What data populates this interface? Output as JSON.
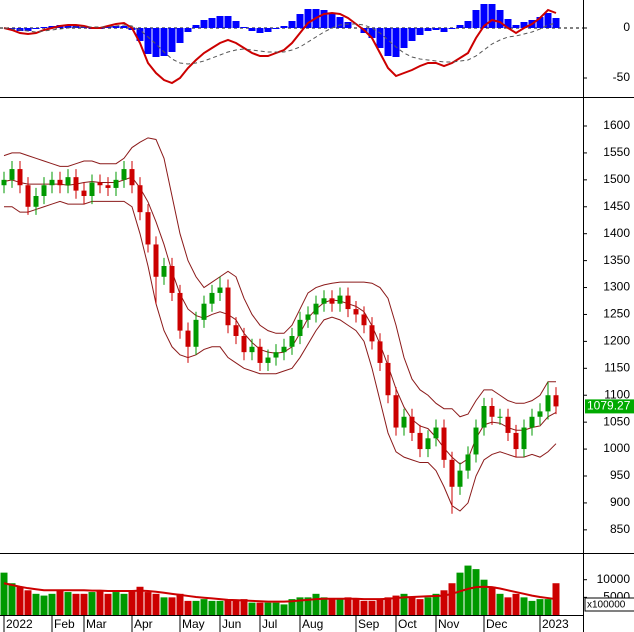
{
  "chart_data": [
    {
      "type": "macd",
      "series": [
        {
          "color": "#cc0000",
          "values": [
            0,
            -2,
            -5,
            -6,
            -5,
            -2,
            0,
            2,
            3,
            3,
            2,
            0,
            0,
            2,
            4,
            5,
            0,
            -15,
            -35,
            -45,
            -52,
            -55,
            -50,
            -40,
            -32,
            -25,
            -20,
            -15,
            -12,
            -15,
            -20,
            -25,
            -28,
            -28,
            -25,
            -22,
            -15,
            -5,
            5,
            10,
            14,
            15,
            14,
            10,
            4,
            -2,
            -10,
            -25,
            -40,
            -48,
            -45,
            -42,
            -38,
            -35,
            -35,
            -38,
            -35,
            -30,
            -25,
            -10,
            2,
            8,
            6,
            0,
            -5,
            0,
            4,
            10,
            18,
            15
          ]
        },
        {
          "color": "#555555",
          "dash": true,
          "values": [
            0,
            -1,
            -2,
            -3,
            -4,
            -3,
            -2,
            -1,
            0,
            1,
            1,
            1,
            1,
            1,
            2,
            3,
            2,
            -2,
            -9,
            -16,
            -24,
            -31,
            -35,
            -36,
            -35,
            -33,
            -30,
            -27,
            -24,
            -22,
            -21,
            -22,
            -23,
            -24,
            -24,
            -24,
            -22,
            -19,
            -14,
            -9,
            -4,
            0,
            3,
            4,
            4,
            3,
            0,
            -5,
            -12,
            -19,
            -25,
            -29,
            -31,
            -32,
            -33,
            -34,
            -34,
            -33,
            -32,
            -28,
            -22,
            -16,
            -12,
            -9,
            -8,
            -6,
            -4,
            -1,
            3,
            5
          ]
        }
      ],
      "histogram": {
        "color": "#0000ff",
        "values": [
          0,
          -1,
          -3,
          -3,
          -1,
          1,
          2,
          3,
          3,
          2,
          1,
          -1,
          -1,
          1,
          2,
          2,
          -2,
          -13,
          -26,
          -29,
          -28,
          -24,
          -15,
          -4,
          3,
          8,
          10,
          12,
          12,
          7,
          1,
          -3,
          -5,
          -4,
          -1,
          2,
          7,
          14,
          19,
          19,
          18,
          15,
          11,
          6,
          0,
          -5,
          -10,
          -20,
          -28,
          -29,
          -20,
          -13,
          -7,
          -3,
          -2,
          -4,
          -1,
          3,
          7,
          18,
          24,
          24,
          18,
          9,
          3,
          6,
          8,
          11,
          15,
          10
        ]
      },
      "ylim": [
        -69,
        28
      ],
      "yticks": [
        -50,
        0
      ]
    },
    {
      "type": "candlestick",
      "open": [
        1490,
        1500,
        1520,
        1490,
        1450,
        1470,
        1490,
        1500,
        1490,
        1505,
        1480,
        1470,
        1495,
        1490,
        1485,
        1500,
        1520,
        1490,
        1440,
        1380,
        1320,
        1340,
        1290,
        1220,
        1190,
        1240,
        1270,
        1290,
        1300,
        1230,
        1210,
        1180,
        1190,
        1160,
        1170,
        1180,
        1190,
        1210,
        1240,
        1250,
        1270,
        1280,
        1270,
        1285,
        1260,
        1250,
        1230,
        1200,
        1160,
        1100,
        1040,
        1060,
        1030,
        1000,
        1020,
        1040,
        980,
        930,
        960,
        990,
        1040,
        1080,
        1060,
        1060,
        1030,
        1000,
        1040,
        1060,
        1070,
        1100
      ],
      "high": [
        1515,
        1535,
        1535,
        1505,
        1485,
        1505,
        1515,
        1515,
        1520,
        1520,
        1495,
        1510,
        1510,
        1505,
        1515,
        1535,
        1535,
        1505,
        1455,
        1395,
        1355,
        1355,
        1305,
        1235,
        1255,
        1285,
        1305,
        1320,
        1315,
        1245,
        1225,
        1205,
        1205,
        1185,
        1195,
        1205,
        1225,
        1255,
        1265,
        1285,
        1295,
        1295,
        1300,
        1300,
        1275,
        1265,
        1245,
        1215,
        1175,
        1115,
        1075,
        1075,
        1045,
        1035,
        1055,
        1055,
        995,
        975,
        1005,
        1055,
        1095,
        1095,
        1075,
        1075,
        1045,
        1055,
        1075,
        1085,
        1125,
        1115
      ],
      "low": [
        1475,
        1485,
        1475,
        1435,
        1435,
        1455,
        1475,
        1475,
        1475,
        1465,
        1455,
        1455,
        1475,
        1470,
        1470,
        1485,
        1475,
        1425,
        1365,
        1270,
        1305,
        1275,
        1205,
        1160,
        1175,
        1225,
        1255,
        1275,
        1215,
        1195,
        1165,
        1165,
        1145,
        1145,
        1155,
        1165,
        1175,
        1195,
        1225,
        1235,
        1255,
        1255,
        1255,
        1245,
        1235,
        1215,
        1185,
        1145,
        1085,
        1025,
        1025,
        1015,
        985,
        985,
        1005,
        965,
        880,
        915,
        945,
        975,
        1025,
        1045,
        1045,
        1015,
        985,
        985,
        1025,
        1045,
        1055,
        1065
      ],
      "close": [
        1500,
        1520,
        1490,
        1450,
        1470,
        1490,
        1500,
        1490,
        1505,
        1480,
        1470,
        1495,
        1490,
        1485,
        1500,
        1520,
        1490,
        1440,
        1380,
        1320,
        1340,
        1290,
        1220,
        1190,
        1240,
        1270,
        1290,
        1300,
        1230,
        1210,
        1180,
        1190,
        1160,
        1170,
        1180,
        1190,
        1210,
        1240,
        1250,
        1270,
        1280,
        1270,
        1285,
        1260,
        1250,
        1230,
        1200,
        1160,
        1100,
        1040,
        1060,
        1030,
        1000,
        1020,
        1040,
        980,
        930,
        960,
        990,
        1040,
        1080,
        1060,
        1060,
        1030,
        1000,
        1040,
        1060,
        1070,
        1100,
        1079.27
      ],
      "up_color": "#009900",
      "down_color": "#cc0000",
      "bands": {
        "color": "#8b1a1a",
        "upper": [
          1545,
          1550,
          1550,
          1545,
          1540,
          1535,
          1530,
          1525,
          1525,
          1530,
          1535,
          1535,
          1530,
          1530,
          1530,
          1540,
          1560,
          1570,
          1578,
          1575,
          1540,
          1470,
          1400,
          1350,
          1320,
          1300,
          1310,
          1320,
          1330,
          1320,
          1280,
          1250,
          1230,
          1220,
          1215,
          1215,
          1230,
          1260,
          1290,
          1300,
          1305,
          1308,
          1310,
          1310,
          1310,
          1310,
          1308,
          1300,
          1280,
          1230,
          1170,
          1130,
          1110,
          1100,
          1085,
          1075,
          1075,
          1060,
          1065,
          1090,
          1110,
          1110,
          1100,
          1090,
          1085,
          1085,
          1090,
          1100,
          1125,
          1125
        ],
        "middle": [
          1497,
          1500,
          1495,
          1492,
          1492,
          1492,
          1492,
          1492,
          1490,
          1492,
          1495,
          1497,
          1495,
          1495,
          1495,
          1500,
          1505,
          1485,
          1459,
          1422,
          1380,
          1330,
          1288,
          1260,
          1248,
          1243,
          1250,
          1255,
          1250,
          1240,
          1215,
          1198,
          1185,
          1180,
          1178,
          1180,
          1190,
          1215,
          1243,
          1260,
          1272,
          1277,
          1275,
          1270,
          1265,
          1255,
          1229,
          1195,
          1155,
          1112,
          1078,
          1055,
          1043,
          1038,
          1022,
          1002,
          985,
          972,
          982,
          1020,
          1045,
          1050,
          1048,
          1040,
          1035,
          1035,
          1040,
          1043,
          1060,
          1068
        ],
        "lower": [
          1450,
          1450,
          1440,
          1440,
          1445,
          1450,
          1455,
          1460,
          1455,
          1455,
          1455,
          1460,
          1460,
          1460,
          1460,
          1460,
          1450,
          1400,
          1340,
          1270,
          1220,
          1190,
          1175,
          1170,
          1175,
          1185,
          1190,
          1190,
          1170,
          1160,
          1150,
          1145,
          1140,
          1140,
          1140,
          1145,
          1150,
          1170,
          1195,
          1220,
          1240,
          1245,
          1240,
          1230,
          1220,
          1200,
          1150,
          1090,
          1030,
          995,
          985,
          980,
          975,
          975,
          960,
          930,
          895,
          885,
          900,
          950,
          980,
          990,
          995,
          990,
          985,
          985,
          990,
          985,
          995,
          1010
        ]
      },
      "last_label": "1079.27",
      "last_color": "#00aa00",
      "ylim": [
        807,
        1652
      ],
      "yticks": [
        850,
        900,
        950,
        1000,
        1050,
        1100,
        1150,
        1200,
        1250,
        1300,
        1350,
        1400,
        1450,
        1500,
        1550,
        1600
      ]
    },
    {
      "type": "bar",
      "values": [
        12000,
        9000,
        8000,
        7000,
        6000,
        5500,
        6000,
        7000,
        6500,
        6000,
        6000,
        6500,
        7000,
        6000,
        6500,
        6000,
        7000,
        8000,
        6500,
        6000,
        5000,
        5000,
        6000,
        4000,
        4000,
        4500,
        4000,
        4000,
        4500,
        4000,
        4500,
        3500,
        3500,
        3500,
        3500,
        3000,
        4500,
        5000,
        5000,
        6000,
        5000,
        4500,
        4500,
        5000,
        4500,
        4000,
        4000,
        4500,
        5000,
        5500,
        6000,
        5000,
        4500,
        5000,
        6000,
        7000,
        9000,
        12000,
        14000,
        13000,
        10000,
        8000,
        6000,
        5000,
        6000,
        5000,
        4000,
        4500,
        4500,
        9000
      ],
      "ma": {
        "color": "#cc0000",
        "values": [
          9000,
          8500,
          8000,
          7600,
          7300,
          7000,
          7000,
          7000,
          7000,
          7000,
          7000,
          6900,
          6900,
          6800,
          6800,
          6800,
          6800,
          6900,
          6800,
          6600,
          6300,
          6000,
          5700,
          5400,
          5100,
          4900,
          4700,
          4500,
          4300,
          4200,
          4100,
          4000,
          3900,
          3800,
          3800,
          3800,
          3900,
          4100,
          4300,
          4500,
          4600,
          4600,
          4600,
          4600,
          4600,
          4500,
          4500,
          4500,
          4600,
          4800,
          5000,
          5100,
          5200,
          5300,
          5400,
          5500,
          6000,
          6700,
          7400,
          7900,
          8000,
          7900,
          7500,
          7000,
          6500,
          6000,
          5500,
          5100,
          4800,
          4500
        ]
      },
      "ylim": [
        0,
        17000
      ],
      "yticks": [
        5000,
        10000
      ],
      "unit_label": "x100000",
      "xticks": [
        {
          "value": 0,
          "label": "2022"
        },
        {
          "value": 6,
          "label": "Feb"
        },
        {
          "value": 10,
          "label": "Mar"
        },
        {
          "value": 16,
          "label": "Apr"
        },
        {
          "value": 22,
          "label": "May"
        },
        {
          "value": 27,
          "label": "Jun"
        },
        {
          "value": 32,
          "label": "Jul"
        },
        {
          "value": 37,
          "label": "Aug"
        },
        {
          "value": 44,
          "label": "Sep"
        },
        {
          "value": 49,
          "label": "Oct"
        },
        {
          "value": 54,
          "label": "Nov"
        },
        {
          "value": 60,
          "label": "Dec"
        },
        {
          "value": 67,
          "label": "2023"
        }
      ]
    }
  ]
}
